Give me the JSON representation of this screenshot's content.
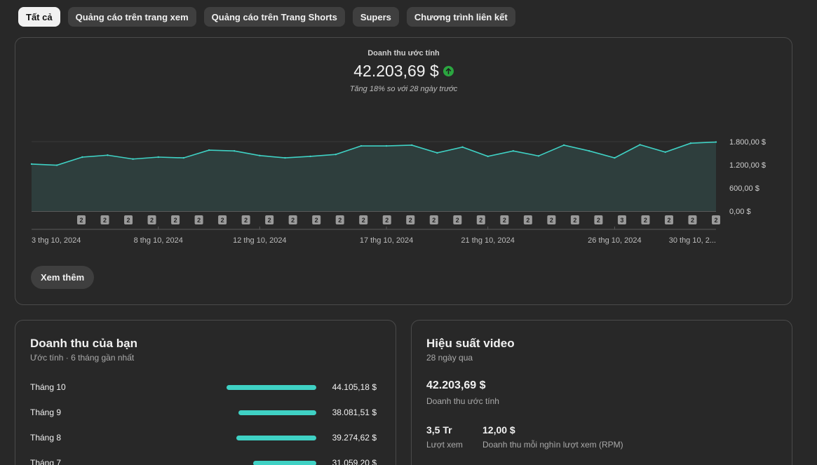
{
  "tabs": [
    {
      "label": "Tất cả",
      "active": true
    },
    {
      "label": "Quảng cáo trên trang xem",
      "active": false
    },
    {
      "label": "Quảng cáo trên Trang Shorts",
      "active": false
    },
    {
      "label": "Supers",
      "active": false
    },
    {
      "label": "Chương trình liên kết",
      "active": false
    }
  ],
  "summary": {
    "label": "Doanh thu ước tính",
    "value": "42.203,69 $",
    "trend_icon": "arrow-up-circle-icon",
    "comparison": "Tăng 18% so với 28 ngày trước"
  },
  "colors": {
    "line": "#3fd1c4",
    "area": "#2e3e3d",
    "trend_up": "#2ba640",
    "bar": "#3fd1c4"
  },
  "chart_data": {
    "type": "area",
    "title": "",
    "x": [
      "2024-10-03",
      "2024-10-04",
      "2024-10-05",
      "2024-10-06",
      "2024-10-07",
      "2024-10-08",
      "2024-10-09",
      "2024-10-10",
      "2024-10-11",
      "2024-10-12",
      "2024-10-13",
      "2024-10-14",
      "2024-10-15",
      "2024-10-16",
      "2024-10-17",
      "2024-10-18",
      "2024-10-19",
      "2024-10-20",
      "2024-10-21",
      "2024-10-22",
      "2024-10-23",
      "2024-10-24",
      "2024-10-25",
      "2024-10-26",
      "2024-10-27",
      "2024-10-28",
      "2024-10-29",
      "2024-10-30"
    ],
    "values": [
      1220,
      1190,
      1400,
      1450,
      1350,
      1400,
      1380,
      1580,
      1560,
      1440,
      1380,
      1420,
      1470,
      1690,
      1690,
      1710,
      1510,
      1660,
      1420,
      1560,
      1430,
      1710,
      1560,
      1380,
      1720,
      1530,
      1760,
      1790
    ],
    "ylim": [
      0,
      1800
    ],
    "yticks": [
      0,
      600,
      1200,
      1800
    ],
    "ytick_labels": [
      "0,00 $",
      "600,00 $",
      "1.200,00 $",
      "1.800,00 $"
    ],
    "xtick_labels": [
      {
        "date": "2024-10-03",
        "label": "3 thg 10, 2024"
      },
      {
        "date": "2024-10-08",
        "label": "8 thg 10, 2024"
      },
      {
        "date": "2024-10-12",
        "label": "12 thg 10, 2024"
      },
      {
        "date": "2024-10-17",
        "label": "17 thg 10, 2024"
      },
      {
        "date": "2024-10-21",
        "label": "21 thg 10, 2024"
      },
      {
        "date": "2024-10-26",
        "label": "26 thg 10, 2024"
      },
      {
        "date": "2024-10-30",
        "label": "30 thg 10, 2..."
      }
    ],
    "upload_markers": [
      2,
      2,
      2,
      2,
      2,
      2,
      2,
      2,
      2,
      2,
      2,
      2,
      2,
      2,
      2,
      2,
      2,
      2,
      2,
      2,
      2,
      2,
      2,
      3,
      2,
      2,
      2,
      2
    ],
    "grid": true
  },
  "more_button": "Xem thêm",
  "revenue": {
    "title": "Doanh thu của bạn",
    "subtitle": "Ước tính · 6 tháng gần nhất",
    "rows": [
      {
        "month": "Tháng 10",
        "value": "44.105,18 $",
        "amount": 44105.18
      },
      {
        "month": "Tháng 9",
        "value": "38.081,51 $",
        "amount": 38081.51
      },
      {
        "month": "Tháng 8",
        "value": "39.274,62 $",
        "amount": 39274.62
      },
      {
        "month": "Tháng 7",
        "value": "31.059,20 $",
        "amount": 31059.2
      }
    ]
  },
  "performance": {
    "title": "Hiệu suất video",
    "subtitle": "28 ngày qua",
    "revenue_value": "42.203,69 $",
    "revenue_label": "Doanh thu ước tính",
    "views_value": "3,5 Tr",
    "views_label": "Lượt xem",
    "rpm_value": "12,00 $",
    "rpm_label": "Doanh thu mỗi nghìn lượt xem (RPM)"
  }
}
